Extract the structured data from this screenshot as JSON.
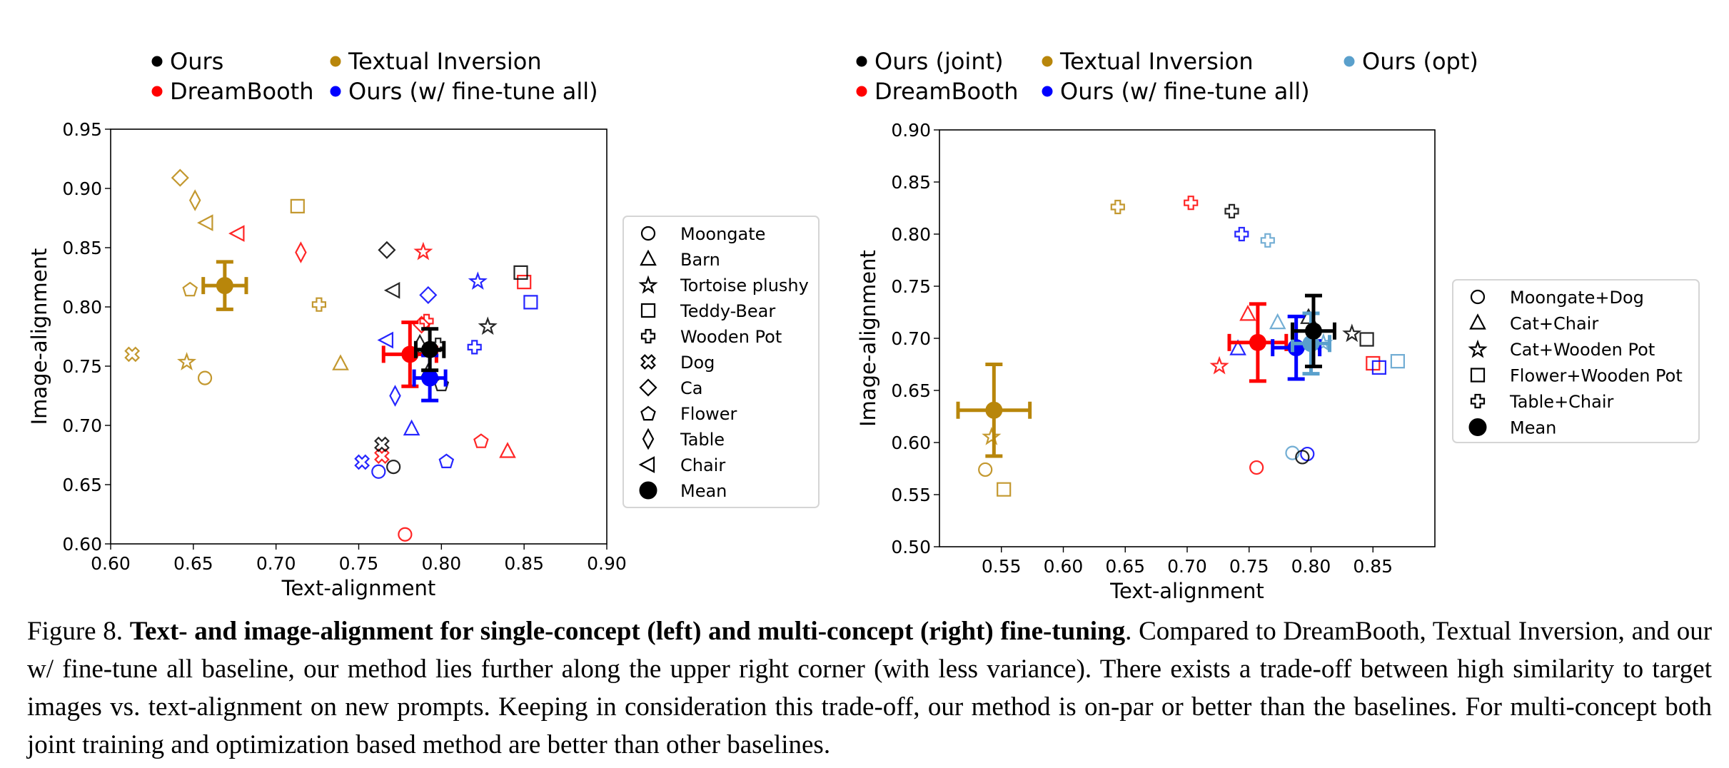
{
  "colors": {
    "ours": "#000000",
    "textual_inversion": "#b8860b",
    "dreambooth": "#ff0000",
    "ours_finetune_all": "#0000ff",
    "ours_opt": "#5aa0cc"
  },
  "caption": {
    "figure_label": "Figure 8.",
    "bold_title": "Text- and image-alignment for single-concept (left) and multi-concept (right) fine-tuning",
    "body": ". Compared to DreamBooth, Textual Inversion, and our w/ fine-tune all baseline, our method lies further along the upper right corner (with less variance). There exists a trade-off between high similarity to target images vs. text-alignment on new prompts. Keeping in consideration this trade-off, our method is on-par or better than the baselines. For multi-concept both joint training and optimization based method are better than other baselines."
  },
  "chart_data": [
    {
      "type": "scatter",
      "title": "",
      "xlabel": "Text-alignment",
      "ylabel": "Image-alignment",
      "xlim": [
        0.6,
        0.9
      ],
      "ylim": [
        0.6,
        0.95
      ],
      "xticks": [
        "0.60",
        "0.65",
        "0.70",
        "0.75",
        "0.80",
        "0.85",
        "0.90"
      ],
      "yticks": [
        "0.60",
        "0.65",
        "0.70",
        "0.75",
        "0.80",
        "0.85",
        "0.90",
        "0.95"
      ],
      "grid": false,
      "method_legend": {
        "placement": "top",
        "entries": [
          {
            "name": "Ours",
            "color_key": "ours"
          },
          {
            "name": "Textual Inversion",
            "color_key": "textual_inversion"
          },
          {
            "name": "DreamBooth",
            "color_key": "dreambooth"
          },
          {
            "name": "Ours (w/ fine-tune all)",
            "color_key": "ours_finetune_all"
          }
        ]
      },
      "marker_legend": {
        "placement": "right",
        "entries": [
          {
            "label": "Moongate",
            "marker": "circle"
          },
          {
            "label": "Barn",
            "marker": "triangle-up"
          },
          {
            "label": "Tortoise plushy",
            "marker": "star"
          },
          {
            "label": "Teddy-Bear",
            "marker": "square"
          },
          {
            "label": "Wooden Pot",
            "marker": "plus"
          },
          {
            "label": "Dog",
            "marker": "x"
          },
          {
            "label": "Ca",
            "marker": "diamond"
          },
          {
            "label": "Flower",
            "marker": "pentagon"
          },
          {
            "label": "Table",
            "marker": "thin-diamond"
          },
          {
            "label": "Chair",
            "marker": "triangle-left"
          },
          {
            "label": "Mean",
            "marker": "filled-circle"
          }
        ]
      },
      "series": [
        {
          "name": "Textual Inversion",
          "color_key": "textual_inversion",
          "points": [
            {
              "concept": "Moongate",
              "marker": "circle",
              "x": 0.657,
              "y": 0.74
            },
            {
              "concept": "Barn",
              "marker": "triangle-up",
              "x": 0.739,
              "y": 0.752
            },
            {
              "concept": "Tortoise plushy",
              "marker": "star",
              "x": 0.646,
              "y": 0.754
            },
            {
              "concept": "Teddy-Bear",
              "marker": "square",
              "x": 0.713,
              "y": 0.885
            },
            {
              "concept": "Wooden Pot",
              "marker": "plus",
              "x": 0.726,
              "y": 0.802
            },
            {
              "concept": "Dog",
              "marker": "x",
              "x": 0.613,
              "y": 0.76
            },
            {
              "concept": "Ca",
              "marker": "diamond",
              "x": 0.642,
              "y": 0.909
            },
            {
              "concept": "Flower",
              "marker": "pentagon",
              "x": 0.648,
              "y": 0.815
            },
            {
              "concept": "Table",
              "marker": "thin-diamond",
              "x": 0.651,
              "y": 0.89
            },
            {
              "concept": "Chair",
              "marker": "triangle-left",
              "x": 0.658,
              "y": 0.871
            }
          ],
          "mean": {
            "x": 0.669,
            "y": 0.818,
            "xerr": 0.013,
            "yerr": 0.02
          }
        },
        {
          "name": "DreamBooth",
          "color_key": "dreambooth",
          "points": [
            {
              "concept": "Moongate",
              "marker": "circle",
              "x": 0.778,
              "y": 0.608
            },
            {
              "concept": "Barn",
              "marker": "triangle-up",
              "x": 0.84,
              "y": 0.678
            },
            {
              "concept": "Tortoise plushy",
              "marker": "star",
              "x": 0.789,
              "y": 0.847
            },
            {
              "concept": "Teddy-Bear",
              "marker": "square",
              "x": 0.85,
              "y": 0.821
            },
            {
              "concept": "Wooden Pot",
              "marker": "plus",
              "x": 0.791,
              "y": 0.788
            },
            {
              "concept": "Dog",
              "marker": "x",
              "x": 0.764,
              "y": 0.674
            },
            {
              "concept": "Ca",
              "marker": "diamond",
              "x": 0.788,
              "y": 0.785
            },
            {
              "concept": "Flower",
              "marker": "pentagon",
              "x": 0.824,
              "y": 0.687
            },
            {
              "concept": "Table",
              "marker": "thin-diamond",
              "x": 0.715,
              "y": 0.846
            },
            {
              "concept": "Chair",
              "marker": "triangle-left",
              "x": 0.677,
              "y": 0.862
            }
          ],
          "mean": {
            "x": 0.781,
            "y": 0.76,
            "xerr": 0.016,
            "yerr": 0.027
          }
        },
        {
          "name": "Ours (w/ fine-tune all)",
          "color_key": "ours_finetune_all",
          "points": [
            {
              "concept": "Moongate",
              "marker": "circle",
              "x": 0.762,
              "y": 0.661
            },
            {
              "concept": "Barn",
              "marker": "triangle-up",
              "x": 0.782,
              "y": 0.697
            },
            {
              "concept": "Tortoise plushy",
              "marker": "star",
              "x": 0.822,
              "y": 0.822
            },
            {
              "concept": "Teddy-Bear",
              "marker": "square",
              "x": 0.854,
              "y": 0.804
            },
            {
              "concept": "Wooden Pot",
              "marker": "plus",
              "x": 0.82,
              "y": 0.766
            },
            {
              "concept": "Dog",
              "marker": "x",
              "x": 0.752,
              "y": 0.669
            },
            {
              "concept": "Ca",
              "marker": "diamond",
              "x": 0.792,
              "y": 0.81
            },
            {
              "concept": "Flower",
              "marker": "pentagon",
              "x": 0.803,
              "y": 0.67
            },
            {
              "concept": "Table",
              "marker": "thin-diamond",
              "x": 0.772,
              "y": 0.725
            },
            {
              "concept": "Chair",
              "marker": "triangle-left",
              "x": 0.767,
              "y": 0.772
            }
          ],
          "mean": {
            "x": 0.793,
            "y": 0.74,
            "xerr": 0.0095,
            "yerr": 0.019
          }
        },
        {
          "name": "Ours",
          "color_key": "ours",
          "points": [
            {
              "concept": "Moongate",
              "marker": "circle",
              "x": 0.771,
              "y": 0.665
            },
            {
              "concept": "Barn",
              "marker": "triangle-up",
              "x": 0.792,
              "y": 0.745
            },
            {
              "concept": "Tortoise plushy",
              "marker": "star",
              "x": 0.828,
              "y": 0.784
            },
            {
              "concept": "Teddy-Bear",
              "marker": "square",
              "x": 0.848,
              "y": 0.829
            },
            {
              "concept": "Wooden Pot",
              "marker": "plus",
              "x": 0.798,
              "y": 0.768
            },
            {
              "concept": "Dog",
              "marker": "x",
              "x": 0.764,
              "y": 0.684
            },
            {
              "concept": "Ca",
              "marker": "diamond",
              "x": 0.767,
              "y": 0.848
            },
            {
              "concept": "Flower",
              "marker": "pentagon",
              "x": 0.8,
              "y": 0.735
            },
            {
              "concept": "Table",
              "marker": "thin-diamond",
              "x": 0.787,
              "y": 0.768
            },
            {
              "concept": "Chair",
              "marker": "triangle-left",
              "x": 0.771,
              "y": 0.814
            }
          ],
          "mean": {
            "x": 0.793,
            "y": 0.764,
            "xerr": 0.0085,
            "yerr": 0.0175
          }
        }
      ]
    },
    {
      "type": "scatter",
      "title": "",
      "xlabel": "Text-alignment",
      "ylabel": "Image-alignment",
      "xlim": [
        0.5,
        0.9
      ],
      "ylim": [
        0.5,
        0.9
      ],
      "xticks": [
        "0.55",
        "0.60",
        "0.65",
        "0.70",
        "0.75",
        "0.80",
        "0.85"
      ],
      "yticks": [
        "0.50",
        "0.55",
        "0.60",
        "0.65",
        "0.70",
        "0.75",
        "0.80",
        "0.85",
        "0.90"
      ],
      "grid": false,
      "method_legend": {
        "placement": "top",
        "entries": [
          {
            "name": "Ours (joint)",
            "color_key": "ours"
          },
          {
            "name": "Textual Inversion",
            "color_key": "textual_inversion"
          },
          {
            "name": "Ours (opt)",
            "color_key": "ours_opt"
          },
          {
            "name": "DreamBooth",
            "color_key": "dreambooth"
          },
          {
            "name": "Ours (w/ fine-tune all)",
            "color_key": "ours_finetune_all"
          }
        ]
      },
      "marker_legend": {
        "placement": "right",
        "entries": [
          {
            "label": "Moongate+Dog",
            "marker": "circle"
          },
          {
            "label": "Cat+Chair",
            "marker": "triangle-up"
          },
          {
            "label": "Cat+Wooden Pot",
            "marker": "star"
          },
          {
            "label": "Flower+Wooden Pot",
            "marker": "square"
          },
          {
            "label": "Table+Chair",
            "marker": "plus"
          },
          {
            "label": "Mean",
            "marker": "filled-circle"
          }
        ]
      },
      "series": [
        {
          "name": "Textual Inversion",
          "color_key": "textual_inversion",
          "points": [
            {
              "concept": "Moongate+Dog",
              "marker": "circle",
              "x": 0.537,
              "y": 0.574
            },
            {
              "concept": "Cat+Wooden Pot",
              "marker": "star",
              "x": 0.542,
              "y": 0.606
            },
            {
              "concept": "Flower+Wooden Pot",
              "marker": "square",
              "x": 0.552,
              "y": 0.555
            },
            {
              "concept": "Table+Chair",
              "marker": "plus",
              "x": 0.644,
              "y": 0.826
            }
          ],
          "mean": {
            "x": 0.544,
            "y": 0.631,
            "xerr": 0.029,
            "yerr": 0.044
          }
        },
        {
          "name": "DreamBooth",
          "color_key": "dreambooth",
          "points": [
            {
              "concept": "Moongate+Dog",
              "marker": "circle",
              "x": 0.756,
              "y": 0.576
            },
            {
              "concept": "Cat+Chair",
              "marker": "triangle-up",
              "x": 0.749,
              "y": 0.723
            },
            {
              "concept": "Cat+Wooden Pot",
              "marker": "star",
              "x": 0.726,
              "y": 0.674
            },
            {
              "concept": "Flower+Wooden Pot",
              "marker": "square",
              "x": 0.85,
              "y": 0.676
            },
            {
              "concept": "Table+Chair",
              "marker": "plus",
              "x": 0.703,
              "y": 0.83
            }
          ],
          "mean": {
            "x": 0.757,
            "y": 0.696,
            "xerr": 0.023,
            "yerr": 0.037
          }
        },
        {
          "name": "Ours (w/ fine-tune all)",
          "color_key": "ours_finetune_all",
          "points": [
            {
              "concept": "Moongate+Dog",
              "marker": "circle",
              "x": 0.797,
              "y": 0.589
            },
            {
              "concept": "Cat+Chair",
              "marker": "triangle-up",
              "x": 0.741,
              "y": 0.69
            },
            {
              "concept": "Flower+Wooden Pot",
              "marker": "square",
              "x": 0.855,
              "y": 0.672
            },
            {
              "concept": "Table+Chair",
              "marker": "plus",
              "x": 0.744,
              "y": 0.8
            }
          ],
          "mean": {
            "x": 0.788,
            "y": 0.691,
            "xerr": 0.019,
            "yerr": 0.03
          }
        },
        {
          "name": "Ours (opt)",
          "color_key": "ours_opt",
          "points": [
            {
              "concept": "Moongate+Dog",
              "marker": "circle",
              "x": 0.785,
              "y": 0.59
            },
            {
              "concept": "Cat+Chair",
              "marker": "triangle-up",
              "x": 0.773,
              "y": 0.715
            },
            {
              "concept": "Cat+Wooden Pot",
              "marker": "star",
              "x": 0.81,
              "y": 0.696
            },
            {
              "concept": "Flower+Wooden Pot",
              "marker": "square",
              "x": 0.87,
              "y": 0.678
            },
            {
              "concept": "Table+Chair",
              "marker": "plus",
              "x": 0.765,
              "y": 0.794
            }
          ],
          "mean": {
            "x": 0.8,
            "y": 0.695,
            "xerr": 0.015,
            "yerr": 0.029
          }
        },
        {
          "name": "Ours (joint)",
          "color_key": "ours",
          "points": [
            {
              "concept": "Moongate+Dog",
              "marker": "circle",
              "x": 0.793,
              "y": 0.586
            },
            {
              "concept": "Cat+Chair",
              "marker": "triangle-up",
              "x": 0.798,
              "y": 0.72
            },
            {
              "concept": "Cat+Wooden Pot",
              "marker": "star",
              "x": 0.833,
              "y": 0.705
            },
            {
              "concept": "Flower+Wooden Pot",
              "marker": "square",
              "x": 0.845,
              "y": 0.699
            },
            {
              "concept": "Table+Chair",
              "marker": "plus",
              "x": 0.736,
              "y": 0.822
            }
          ],
          "mean": {
            "x": 0.802,
            "y": 0.707,
            "xerr": 0.017,
            "yerr": 0.034
          }
        }
      ]
    }
  ]
}
